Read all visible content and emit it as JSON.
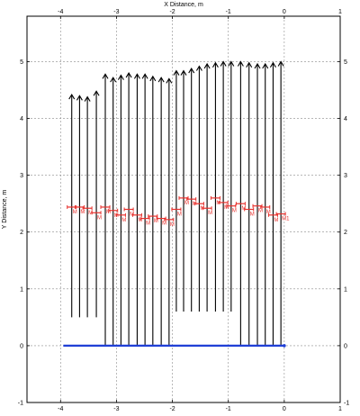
{
  "chart_data": {
    "type": "line",
    "title": "",
    "xlabel": "X Distance, m",
    "ylabel": "Y Distance, m",
    "xlim": [
      -4.6,
      1.0
    ],
    "ylim": [
      -1.0,
      5.8
    ],
    "xticks": [
      -4,
      -3,
      -2,
      -1,
      0,
      1
    ],
    "yticks": [
      -1,
      0,
      1,
      2,
      3,
      4,
      5
    ],
    "grid": true,
    "colors": {
      "frame": "#000000",
      "grid": "#8c8c8c",
      "arrow": "#000000",
      "base_line": "#1f3fd6",
      "member": "#e8302c",
      "background": "#ffffff"
    },
    "base_line": {
      "x": [
        -3.95,
        0.0
      ],
      "y": [
        0.0,
        0.0
      ]
    },
    "arrows": [
      {
        "x": -3.8,
        "y0": 0.5,
        "y1": 4.42
      },
      {
        "x": -3.66,
        "y0": 0.5,
        "y1": 4.4
      },
      {
        "x": -3.52,
        "y0": 0.5,
        "y1": 4.38
      },
      {
        "x": -3.36,
        "y0": 0.5,
        "y1": 4.48
      },
      {
        "x": -3.2,
        "y0": 0.0,
        "y1": 4.78
      },
      {
        "x": -3.06,
        "y0": 0.0,
        "y1": 4.72
      },
      {
        "x": -2.92,
        "y0": 0.0,
        "y1": 4.76
      },
      {
        "x": -2.78,
        "y0": 0.0,
        "y1": 4.8
      },
      {
        "x": -2.63,
        "y0": 0.0,
        "y1": 4.78
      },
      {
        "x": -2.49,
        "y0": 0.0,
        "y1": 4.78
      },
      {
        "x": -2.35,
        "y0": 0.0,
        "y1": 4.74
      },
      {
        "x": -2.2,
        "y0": 0.0,
        "y1": 4.72
      },
      {
        "x": -2.06,
        "y0": 0.0,
        "y1": 4.7
      },
      {
        "x": -1.93,
        "y0": 0.6,
        "y1": 4.84
      },
      {
        "x": -1.8,
        "y0": 0.6,
        "y1": 4.84
      },
      {
        "x": -1.66,
        "y0": 0.6,
        "y1": 4.88
      },
      {
        "x": -1.52,
        "y0": 0.6,
        "y1": 4.92
      },
      {
        "x": -1.38,
        "y0": 0.6,
        "y1": 4.96
      },
      {
        "x": -1.23,
        "y0": 0.6,
        "y1": 4.98
      },
      {
        "x": -1.09,
        "y0": 0.6,
        "y1": 5.0
      },
      {
        "x": -0.95,
        "y0": 0.6,
        "y1": 5.0
      },
      {
        "x": -0.78,
        "y0": 0.0,
        "y1": 5.0
      },
      {
        "x": -0.63,
        "y0": 0.0,
        "y1": 4.98
      },
      {
        "x": -0.48,
        "y0": 0.0,
        "y1": 4.96
      },
      {
        "x": -0.34,
        "y0": 0.0,
        "y1": 4.96
      },
      {
        "x": -0.2,
        "y0": 0.0,
        "y1": 4.98
      },
      {
        "x": -0.06,
        "y0": 0.0,
        "y1": 5.0
      }
    ],
    "members": [
      {
        "x": -3.8,
        "y": 2.44,
        "label": "M"
      },
      {
        "x": -3.66,
        "y": 2.44,
        "label": "M"
      },
      {
        "x": -3.52,
        "y": 2.42,
        "label": "M"
      },
      {
        "x": -3.36,
        "y": 2.34,
        "label": "M"
      },
      {
        "x": -3.2,
        "y": 2.44,
        "label": "M"
      },
      {
        "x": -3.06,
        "y": 2.38,
        "label": "M"
      },
      {
        "x": -2.92,
        "y": 2.3,
        "label": "M"
      },
      {
        "x": -2.78,
        "y": 2.4,
        "label": "M"
      },
      {
        "x": -2.63,
        "y": 2.3,
        "label": "M"
      },
      {
        "x": -2.49,
        "y": 2.24,
        "label": "M"
      },
      {
        "x": -2.35,
        "y": 2.28,
        "label": "M"
      },
      {
        "x": -2.2,
        "y": 2.24,
        "label": "M"
      },
      {
        "x": -2.06,
        "y": 2.22,
        "label": "M"
      },
      {
        "x": -1.93,
        "y": 2.4,
        "label": "M"
      },
      {
        "x": -1.8,
        "y": 2.6,
        "label": "M"
      },
      {
        "x": -1.66,
        "y": 2.58,
        "label": "M"
      },
      {
        "x": -1.52,
        "y": 2.5,
        "label": "M"
      },
      {
        "x": -1.38,
        "y": 2.42,
        "label": "M"
      },
      {
        "x": -1.23,
        "y": 2.6,
        "label": "M"
      },
      {
        "x": -1.09,
        "y": 2.52,
        "label": "M"
      },
      {
        "x": -0.95,
        "y": 2.46,
        "label": "M"
      },
      {
        "x": -0.78,
        "y": 2.5,
        "label": "M"
      },
      {
        "x": -0.63,
        "y": 2.4,
        "label": "M"
      },
      {
        "x": -0.48,
        "y": 2.46,
        "label": "M"
      },
      {
        "x": -0.34,
        "y": 2.44,
        "label": "M"
      },
      {
        "x": -0.2,
        "y": 2.3,
        "label": "M"
      },
      {
        "x": -0.06,
        "y": 2.32,
        "label": "M1"
      }
    ]
  }
}
